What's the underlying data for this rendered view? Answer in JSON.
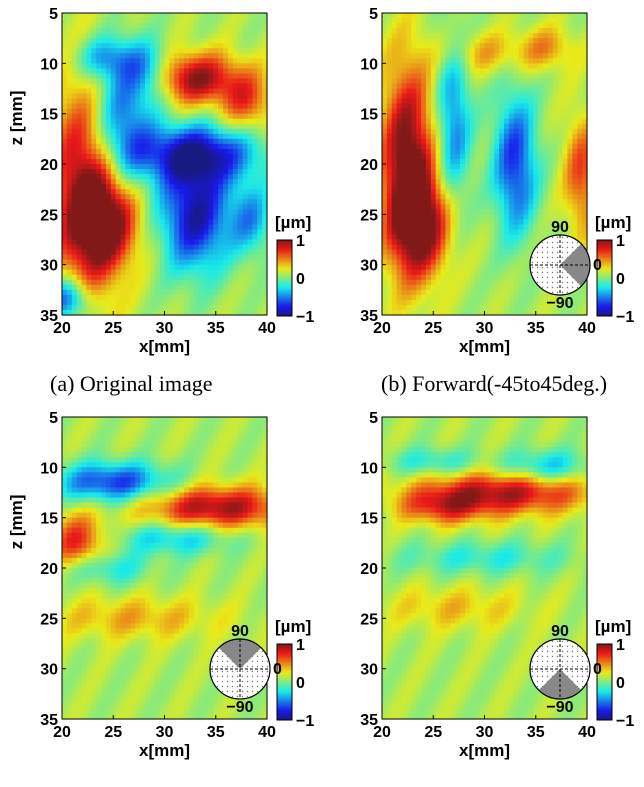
{
  "chart_data": [
    {
      "type": "heatmap",
      "caption": "(a) Original image",
      "xlabel": "x[mm]",
      "ylabel": "z [mm]",
      "xlim": [
        20,
        40
      ],
      "ylim": [
        35,
        5
      ],
      "xticks": [
        20,
        25,
        30,
        35,
        40
      ],
      "yticks": [
        5,
        10,
        15,
        20,
        25,
        30,
        35
      ],
      "colorbar": {
        "unit": "[µm]",
        "ticks": [
          "1",
          "0",
          "−1"
        ],
        "range": [
          -1,
          1
        ]
      },
      "direction_inset": null,
      "features": [
        {
          "x": 22.5,
          "z": 22,
          "sx": 2.4,
          "sz": 7.5,
          "v": 1.0
        },
        {
          "x": 24.5,
          "z": 26,
          "sx": 2.2,
          "sz": 3,
          "v": 0.7
        },
        {
          "x": 32.5,
          "z": 11.5,
          "sx": 3.5,
          "sz": 1.8,
          "v": 0.9
        },
        {
          "x": 38,
          "z": 14,
          "sx": 1.8,
          "sz": 2,
          "v": 0.5
        },
        {
          "x": 33,
          "z": 25,
          "sx": 2.4,
          "sz": 4,
          "v": -1.0
        },
        {
          "x": 33,
          "z": 19,
          "sx": 4.5,
          "sz": 2,
          "v": -0.9
        },
        {
          "x": 25.5,
          "z": 15.5,
          "sx": 2.2,
          "sz": 4.5,
          "v": -0.8
        },
        {
          "x": 28.5,
          "z": 11,
          "sx": 1.8,
          "sz": 2,
          "v": -0.7
        },
        {
          "x": 24,
          "z": 9.5,
          "sx": 2,
          "sz": 1.5,
          "v": -0.5
        },
        {
          "x": 20.5,
          "z": 33.5,
          "sx": 1.5,
          "sz": 1.5,
          "v": -0.8
        },
        {
          "x": 38.5,
          "z": 25.5,
          "sx": 1.5,
          "sz": 2.5,
          "v": -0.5
        }
      ]
    },
    {
      "type": "heatmap",
      "caption": "(b) Forward(-45to45deg.)",
      "xlabel": "x[mm]",
      "ylabel": "",
      "xlim": [
        20,
        40
      ],
      "ylim": [
        35,
        5
      ],
      "xticks": [
        20,
        25,
        30,
        35,
        40
      ],
      "yticks": [
        5,
        10,
        15,
        20,
        25,
        30,
        35
      ],
      "colorbar": {
        "unit": "[µm]",
        "ticks": [
          "1",
          "0",
          "−1"
        ],
        "range": [
          -1,
          1
        ]
      },
      "direction_inset": {
        "labels": [
          "90",
          "0",
          "−90"
        ],
        "sector_deg": [
          -45,
          45
        ]
      },
      "features": [
        {
          "x": 22.5,
          "z": 20,
          "sx": 1.8,
          "sz": 7,
          "v": 1.0
        },
        {
          "x": 24,
          "z": 26,
          "sx": 2,
          "sz": 3.5,
          "v": 0.8
        },
        {
          "x": 27,
          "z": 16,
          "sx": 1.2,
          "sz": 6,
          "v": -0.6
        },
        {
          "x": 33,
          "z": 20,
          "sx": 1.5,
          "sz": 5,
          "v": -0.8
        },
        {
          "x": 39.5,
          "z": 21,
          "sx": 1.2,
          "sz": 4,
          "v": 0.55
        },
        {
          "x": 30,
          "z": 9,
          "sx": 3,
          "sz": 1.5,
          "v": 0.3
        },
        {
          "x": 36,
          "z": 8.5,
          "sx": 2,
          "sz": 1.5,
          "v": 0.35
        }
      ]
    },
    {
      "type": "heatmap",
      "caption": "",
      "xlabel": "x[mm]",
      "ylabel": "z [mm]",
      "xlim": [
        20,
        40
      ],
      "ylim": [
        35,
        5
      ],
      "xticks": [
        20,
        25,
        30,
        35,
        40
      ],
      "yticks": [
        5,
        10,
        15,
        20,
        25,
        30,
        35
      ],
      "colorbar": {
        "unit": "[µm]",
        "ticks": [
          "1",
          "0",
          "−1"
        ],
        "range": [
          -1,
          1
        ]
      },
      "direction_inset": {
        "labels": [
          "90",
          "0",
          "−90"
        ],
        "sector_deg": [
          45,
          135
        ]
      },
      "features": [
        {
          "x": 25,
          "z": 11.5,
          "sx": 4,
          "sz": 1.4,
          "v": -0.8
        },
        {
          "x": 35,
          "z": 14,
          "sx": 5,
          "sz": 1.5,
          "v": 0.85
        },
        {
          "x": 21.5,
          "z": 17.5,
          "sx": 2,
          "sz": 2,
          "v": 0.65
        },
        {
          "x": 31,
          "z": 17,
          "sx": 4,
          "sz": 1.2,
          "v": -0.45
        },
        {
          "x": 24,
          "z": 20,
          "sx": 3,
          "sz": 1.2,
          "v": -0.4
        },
        {
          "x": 27,
          "z": 25,
          "sx": 6,
          "sz": 1.5,
          "v": 0.3
        }
      ]
    },
    {
      "type": "heatmap",
      "caption": "",
      "xlabel": "x[mm]",
      "ylabel": "",
      "xlim": [
        20,
        40
      ],
      "ylim": [
        35,
        5
      ],
      "xticks": [
        20,
        25,
        30,
        35,
        40
      ],
      "yticks": [
        5,
        10,
        15,
        20,
        25,
        30,
        35
      ],
      "colorbar": {
        "unit": "[µm]",
        "ticks": [
          "1",
          "0",
          "−1"
        ],
        "range": [
          -1,
          1
        ]
      },
      "direction_inset": {
        "labels": [
          "90",
          "0",
          "−90"
        ],
        "sector_deg": [
          -135,
          -45
        ]
      },
      "features": [
        {
          "x": 32,
          "z": 12.5,
          "sx": 6,
          "sz": 1.5,
          "v": 0.8
        },
        {
          "x": 26,
          "z": 14,
          "sx": 3,
          "sz": 1.2,
          "v": 0.5
        },
        {
          "x": 36,
          "z": 10,
          "sx": 3,
          "sz": 1.2,
          "v": -0.5
        },
        {
          "x": 25,
          "z": 9.5,
          "sx": 3,
          "sz": 1,
          "v": -0.35
        },
        {
          "x": 30,
          "z": 19,
          "sx": 6,
          "sz": 1.2,
          "v": -0.3
        },
        {
          "x": 27,
          "z": 24,
          "sx": 5,
          "sz": 1.5,
          "v": 0.25
        }
      ]
    }
  ]
}
